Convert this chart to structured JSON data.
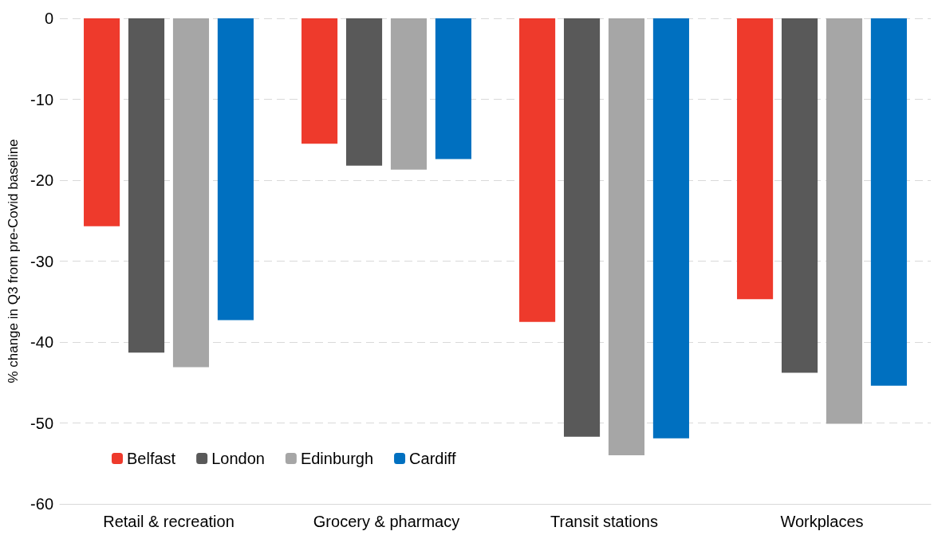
{
  "chart_data": {
    "type": "bar",
    "ylabel": "% change in Q3 from pre-Covid baseline",
    "categories": [
      "Retail & recreation",
      "Grocery & pharmacy",
      "Transit stations",
      "Workplaces"
    ],
    "series": [
      {
        "name": "Belfast",
        "color": "#ee3a2c",
        "values": [
          -25.7,
          -15.5,
          -37.5,
          -34.7
        ]
      },
      {
        "name": "London",
        "color": "#595959",
        "values": [
          -41.3,
          -18.2,
          -51.7,
          -43.8
        ]
      },
      {
        "name": "Edinburgh",
        "color": "#a6a6a6",
        "values": [
          -43.1,
          -18.7,
          -54.0,
          -50.1
        ]
      },
      {
        "name": "Cardiff",
        "color": "#0070c0",
        "values": [
          -37.3,
          -17.4,
          -51.9,
          -45.4
        ]
      }
    ],
    "ylim": [
      -60,
      0
    ],
    "yticks": [
      -60,
      -50,
      -40,
      -30,
      -20,
      -10,
      0
    ],
    "grid": "y",
    "legend": "bottom left"
  }
}
